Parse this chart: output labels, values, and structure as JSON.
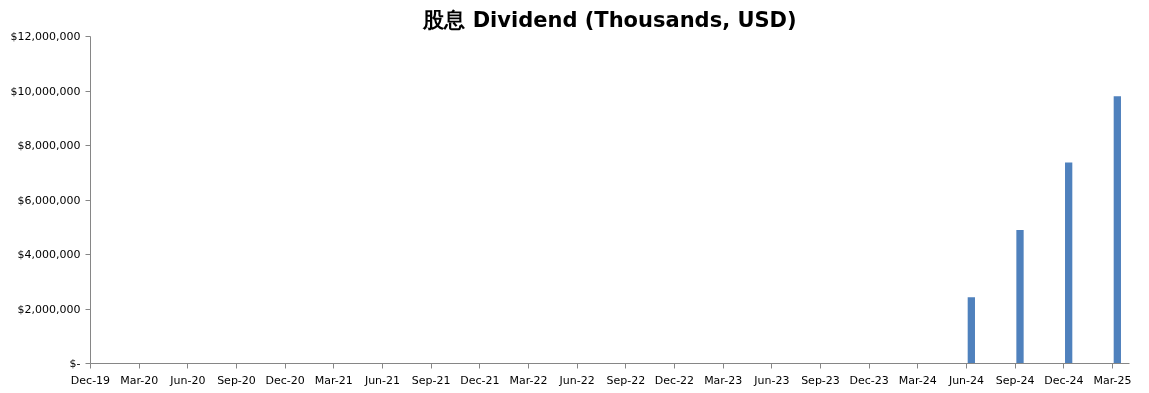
{
  "chart_data": {
    "type": "bar",
    "title": "股息 Dividend (Thousands, USD)",
    "categories": [
      "Dec-19",
      "Mar-20",
      "Jun-20",
      "Sep-20",
      "Dec-20",
      "Mar-21",
      "Jun-21",
      "Sep-21",
      "Dec-21",
      "Mar-22",
      "Jun-22",
      "Sep-22",
      "Dec-22",
      "Mar-23",
      "Jun-23",
      "Sep-23",
      "Dec-23",
      "Mar-24",
      "Jun-24",
      "Sep-24",
      "Dec-24",
      "Mar-25"
    ],
    "values": [
      0,
      0,
      0,
      0,
      0,
      0,
      0,
      0,
      0,
      0,
      0,
      0,
      0,
      0,
      0,
      0,
      0,
      0,
      2430000,
      4900000,
      7380000,
      9810000
    ],
    "color": "#4f81bd",
    "ylim": [
      0,
      12000000
    ],
    "yticks": [
      {
        "value": 0,
        "label": "$-"
      },
      {
        "value": 2000000,
        "label": "$2,000,000"
      },
      {
        "value": 4000000,
        "label": "$4,000,000"
      },
      {
        "value": 6000000,
        "label": "$6,000,000"
      },
      {
        "value": 8000000,
        "label": "$8,000,000"
      },
      {
        "value": 10000000,
        "label": "$10,000,000"
      },
      {
        "value": 12000000,
        "label": "$12,000,000"
      }
    ],
    "grid": false
  }
}
